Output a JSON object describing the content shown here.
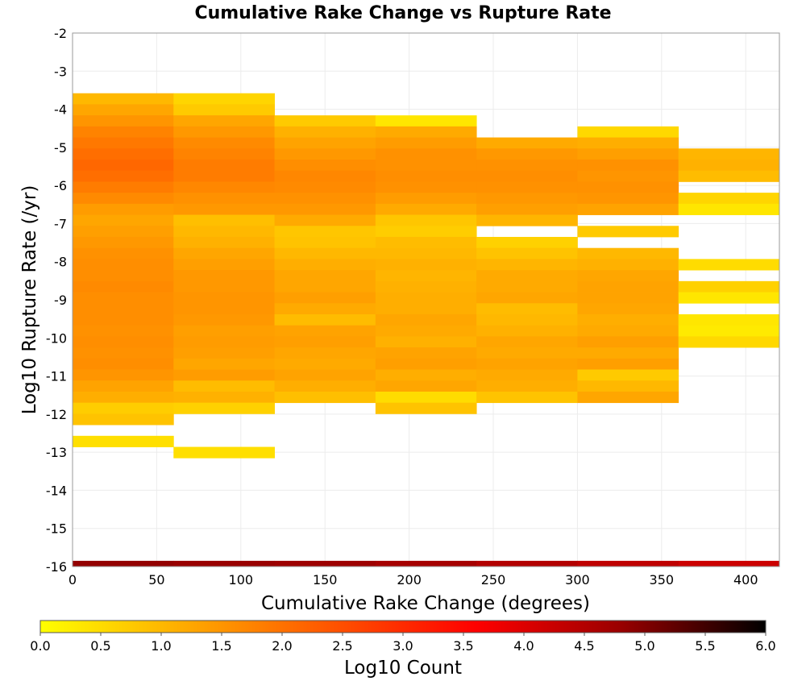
{
  "chart_data": {
    "type": "heatmap",
    "title": "Cumulative Rake Change vs Rupture Rate",
    "xlabel": "Cumulative Rake Change (degrees)",
    "ylabel": "Log10 Rupture Rate (/yr)",
    "xlim": [
      0,
      420
    ],
    "ylim": [
      -16,
      -2
    ],
    "x_ticks": [
      "0",
      "50",
      "100",
      "150",
      "200",
      "250",
      "300",
      "350",
      "400"
    ],
    "y_ticks": [
      "-2",
      "-3",
      "-4",
      "-5",
      "-6",
      "-7",
      "-8",
      "-9",
      "-10",
      "-11",
      "-12",
      "-13",
      "-14",
      "-15",
      "-16"
    ],
    "grid": true,
    "x_bin_width": 60,
    "y_bin_width": 0.29,
    "colorbar": {
      "label": "Log10 Count",
      "range": [
        0,
        6
      ],
      "ticks": [
        "0.0",
        "0.5",
        "1.0",
        "1.5",
        "2.0",
        "2.5",
        "3.0",
        "3.5",
        "4.0",
        "4.5",
        "5.0",
        "5.5",
        "6.0"
      ],
      "colors": [
        "#ffff00",
        "#ffaa00",
        "#ff5500",
        "#ff0000",
        "#990000",
        "#000000"
      ]
    },
    "columns": [
      {
        "x_start": 0,
        "cells": [
          [
            -3.58,
            1.0
          ],
          [
            -3.87,
            1.25
          ],
          [
            -4.16,
            1.5
          ],
          [
            -4.45,
            1.75
          ],
          [
            -4.74,
            1.9
          ],
          [
            -5.03,
            2.05
          ],
          [
            -5.32,
            2.15
          ],
          [
            -5.61,
            2.05
          ],
          [
            -5.9,
            1.85
          ],
          [
            -6.19,
            1.65
          ],
          [
            -6.48,
            1.4
          ],
          [
            -6.77,
            1.25
          ],
          [
            -7.06,
            1.35
          ],
          [
            -7.35,
            1.45
          ],
          [
            -7.64,
            1.55
          ],
          [
            -7.93,
            1.6
          ],
          [
            -8.22,
            1.6
          ],
          [
            -8.51,
            1.65
          ],
          [
            -8.8,
            1.6
          ],
          [
            -9.09,
            1.6
          ],
          [
            -9.38,
            1.6
          ],
          [
            -9.67,
            1.55
          ],
          [
            -9.96,
            1.6
          ],
          [
            -10.25,
            1.55
          ],
          [
            -10.54,
            1.6
          ],
          [
            -10.83,
            1.5
          ],
          [
            -11.12,
            1.3
          ],
          [
            -11.41,
            1.15
          ],
          [
            -11.7,
            0.7
          ],
          [
            -11.99,
            0.85
          ],
          [
            -12.57,
            0.45
          ]
        ]
      },
      {
        "x_start": 60,
        "cells": [
          [
            -3.58,
            0.6
          ],
          [
            -3.87,
            0.75
          ],
          [
            -4.16,
            1.25
          ],
          [
            -4.45,
            1.45
          ],
          [
            -4.74,
            1.65
          ],
          [
            -5.03,
            1.75
          ],
          [
            -5.32,
            1.85
          ],
          [
            -5.61,
            1.85
          ],
          [
            -5.9,
            1.7
          ],
          [
            -6.19,
            1.55
          ],
          [
            -6.48,
            1.45
          ],
          [
            -6.77,
            0.9
          ],
          [
            -7.06,
            1.0
          ],
          [
            -7.35,
            1.1
          ],
          [
            -7.64,
            1.25
          ],
          [
            -7.93,
            1.35
          ],
          [
            -8.22,
            1.45
          ],
          [
            -8.51,
            1.45
          ],
          [
            -8.8,
            1.5
          ],
          [
            -9.09,
            1.5
          ],
          [
            -9.38,
            1.45
          ],
          [
            -9.67,
            1.35
          ],
          [
            -9.96,
            1.4
          ],
          [
            -10.25,
            1.35
          ],
          [
            -10.54,
            1.25
          ],
          [
            -10.83,
            1.4
          ],
          [
            -11.12,
            0.95
          ],
          [
            -11.41,
            1.1
          ],
          [
            -11.7,
            0.65
          ],
          [
            -12.86,
            0.45
          ]
        ]
      },
      {
        "x_start": 120,
        "cells": [
          [
            -4.16,
            0.75
          ],
          [
            -4.45,
            1.1
          ],
          [
            -4.74,
            1.3
          ],
          [
            -5.03,
            1.45
          ],
          [
            -5.32,
            1.6
          ],
          [
            -5.61,
            1.7
          ],
          [
            -5.9,
            1.65
          ],
          [
            -6.19,
            1.55
          ],
          [
            -6.48,
            1.45
          ],
          [
            -6.77,
            1.2
          ],
          [
            -7.06,
            0.8
          ],
          [
            -7.35,
            0.85
          ],
          [
            -7.64,
            1.0
          ],
          [
            -7.93,
            1.15
          ],
          [
            -8.22,
            1.25
          ],
          [
            -8.51,
            1.25
          ],
          [
            -8.8,
            1.35
          ],
          [
            -9.09,
            1.2
          ],
          [
            -9.38,
            0.95
          ],
          [
            -9.67,
            1.3
          ],
          [
            -9.96,
            1.35
          ],
          [
            -10.25,
            1.25
          ],
          [
            -10.54,
            1.2
          ],
          [
            -10.83,
            1.3
          ],
          [
            -11.12,
            1.15
          ],
          [
            -11.41,
            0.9
          ]
        ]
      },
      {
        "x_start": 180,
        "cells": [
          [
            -4.16,
            0.35
          ],
          [
            -4.45,
            1.2
          ],
          [
            -4.74,
            1.4
          ],
          [
            -5.03,
            1.55
          ],
          [
            -5.32,
            1.55
          ],
          [
            -5.61,
            1.6
          ],
          [
            -5.9,
            1.55
          ],
          [
            -6.19,
            1.4
          ],
          [
            -6.48,
            1.2
          ],
          [
            -6.77,
            0.8
          ],
          [
            -7.06,
            0.7
          ],
          [
            -7.35,
            0.95
          ],
          [
            -7.64,
            1.0
          ],
          [
            -7.93,
            1.1
          ],
          [
            -8.22,
            1.05
          ],
          [
            -8.51,
            1.1
          ],
          [
            -8.8,
            1.15
          ],
          [
            -9.09,
            1.15
          ],
          [
            -9.38,
            1.25
          ],
          [
            -9.67,
            1.2
          ],
          [
            -9.96,
            1.1
          ],
          [
            -10.25,
            1.3
          ],
          [
            -10.54,
            1.35
          ],
          [
            -10.83,
            1.15
          ],
          [
            -11.12,
            1.25
          ],
          [
            -11.41,
            0.5
          ],
          [
            -11.7,
            0.85
          ]
        ]
      },
      {
        "x_start": 240,
        "cells": [
          [
            -4.74,
            1.2
          ],
          [
            -5.03,
            1.45
          ],
          [
            -5.32,
            1.55
          ],
          [
            -5.61,
            1.6
          ],
          [
            -5.9,
            1.55
          ],
          [
            -6.19,
            1.45
          ],
          [
            -6.48,
            1.35
          ],
          [
            -6.77,
            1.05
          ],
          [
            -7.35,
            0.65
          ],
          [
            -7.64,
            0.85
          ],
          [
            -7.93,
            1.05
          ],
          [
            -8.22,
            1.2
          ],
          [
            -8.51,
            1.2
          ],
          [
            -8.8,
            1.25
          ],
          [
            -9.09,
            0.95
          ],
          [
            -9.38,
            1.0
          ],
          [
            -9.67,
            1.1
          ],
          [
            -9.96,
            1.25
          ],
          [
            -10.25,
            1.2
          ],
          [
            -10.54,
            1.3
          ],
          [
            -10.83,
            1.2
          ],
          [
            -11.12,
            1.15
          ],
          [
            -11.41,
            0.85
          ]
        ]
      },
      {
        "x_start": 300,
        "cells": [
          [
            -4.45,
            0.55
          ],
          [
            -4.74,
            1.15
          ],
          [
            -5.03,
            1.35
          ],
          [
            -5.32,
            1.55
          ],
          [
            -5.61,
            1.5
          ],
          [
            -5.9,
            1.55
          ],
          [
            -6.19,
            1.5
          ],
          [
            -6.48,
            1.3
          ],
          [
            -7.06,
            0.75
          ],
          [
            -7.64,
            1.0
          ],
          [
            -7.93,
            1.1
          ],
          [
            -8.22,
            1.25
          ],
          [
            -8.51,
            1.3
          ],
          [
            -8.8,
            1.3
          ],
          [
            -9.09,
            1.25
          ],
          [
            -9.38,
            1.15
          ],
          [
            -9.67,
            1.2
          ],
          [
            -9.96,
            1.35
          ],
          [
            -10.25,
            1.2
          ],
          [
            -10.54,
            1.35
          ],
          [
            -10.83,
            0.75
          ],
          [
            -11.12,
            1.0
          ],
          [
            -11.41,
            1.25
          ]
        ]
      },
      {
        "x_start": 360,
        "cells": [
          [
            -5.03,
            1.05
          ],
          [
            -5.32,
            1.1
          ],
          [
            -5.61,
            0.95
          ],
          [
            -6.19,
            0.6
          ],
          [
            -6.48,
            0.35
          ],
          [
            -7.93,
            0.5
          ],
          [
            -8.51,
            0.65
          ],
          [
            -8.8,
            0.35
          ],
          [
            -9.38,
            0.35
          ],
          [
            -9.67,
            0.3
          ],
          [
            -9.96,
            0.55
          ]
        ]
      }
    ],
    "bottom_band": {
      "y_start": -15.85,
      "y_end": -16,
      "values": [
        4.85,
        4.8,
        4.75,
        4.65,
        4.5,
        4.35,
        4.2,
        3.45
      ]
    }
  }
}
